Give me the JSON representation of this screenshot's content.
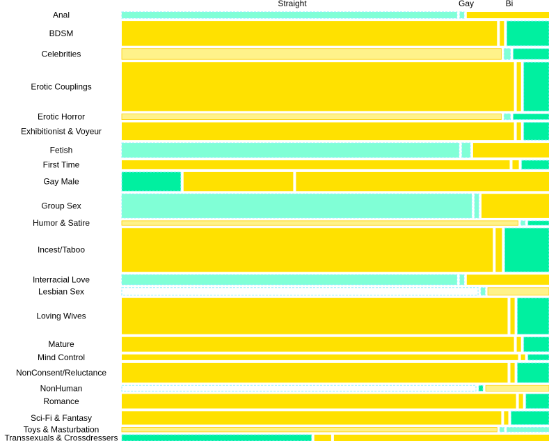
{
  "chart_data": {
    "type": "mosaic",
    "title": "",
    "xlabel": "",
    "ylabel": "",
    "columns": [
      "Straight",
      "Gay",
      "Bi"
    ],
    "colors": {
      "yellow": "#ffe100",
      "pale_yellow": "#fff28a",
      "mint": "#80ffd6",
      "green": "#00f0a0",
      "outline": "#8df0ff"
    },
    "categories": [
      {
        "name": "Anal",
        "weight": 10,
        "straight": 0.795,
        "gay": 0.01,
        "bi": 0.195,
        "style": [
          "mint",
          "mint",
          "yellow"
        ]
      },
      {
        "name": "BDSM",
        "weight": 39,
        "straight": 0.89,
        "gay": 0.01,
        "bi": 0.1,
        "style": [
          "yellow",
          "yellow",
          "green"
        ]
      },
      {
        "name": "Celebrities",
        "weight": 17,
        "straight": 0.9,
        "gay": 0.015,
        "bi": 0.085,
        "style": [
          "pale_yellow",
          "mint",
          "green"
        ]
      },
      {
        "name": "Erotic Couplings",
        "weight": 77,
        "straight": 0.93,
        "gay": 0.01,
        "bi": 0.06,
        "style": [
          "yellow",
          "yellow",
          "green"
        ]
      },
      {
        "name": "Erotic Horror",
        "weight": 9,
        "straight": 0.9,
        "gay": 0.015,
        "bi": 0.085,
        "style": [
          "pale_yellow",
          "mint",
          "green"
        ]
      },
      {
        "name": "Exhibitionist & Voyeur",
        "weight": 28,
        "straight": 0.93,
        "gay": 0.01,
        "bi": 0.06,
        "style": [
          "yellow",
          "yellow",
          "green"
        ]
      },
      {
        "name": "Fetish",
        "weight": 23,
        "straight": 0.8,
        "gay": 0.02,
        "bi": 0.18,
        "style": [
          "mint",
          "mint",
          "yellow"
        ]
      },
      {
        "name": "First Time",
        "weight": 14,
        "straight": 0.92,
        "gay": 0.015,
        "bi": 0.065,
        "style": [
          "yellow",
          "yellow",
          "green"
        ]
      },
      {
        "name": "Gay Male",
        "weight": 30,
        "straight": 0.14,
        "gay": 0.26,
        "bi": 0.6,
        "style": [
          "green",
          "yellow",
          "yellow"
        ]
      },
      {
        "name": "Group Sex",
        "weight": 38,
        "straight": 0.83,
        "gay": 0.01,
        "bi": 0.16,
        "style": [
          "mint",
          "mint",
          "yellow"
        ]
      },
      {
        "name": "Humor & Satire",
        "weight": 7,
        "straight": 0.94,
        "gay": 0.01,
        "bi": 0.05,
        "style": [
          "pale_yellow",
          "mint",
          "green"
        ]
      },
      {
        "name": "Incest/Taboo",
        "weight": 69,
        "straight": 0.88,
        "gay": 0.015,
        "bi": 0.105,
        "style": [
          "yellow",
          "yellow",
          "green"
        ]
      },
      {
        "name": "Interracial Love",
        "weight": 16,
        "straight": 0.795,
        "gay": 0.01,
        "bi": 0.195,
        "style": [
          "mint",
          "mint",
          "yellow"
        ]
      },
      {
        "name": "Lesbian Sex",
        "weight": 12,
        "straight": 0.845,
        "gay": 0.01,
        "bi": 0.145,
        "style": [
          "white",
          "mint",
          "pale_yellow"
        ]
      },
      {
        "name": "Loving Wives",
        "weight": 57,
        "straight": 0.915,
        "gay": 0.01,
        "bi": 0.075,
        "style": [
          "yellow",
          "yellow",
          "green"
        ]
      },
      {
        "name": "Mature",
        "weight": 23,
        "straight": 0.93,
        "gay": 0.01,
        "bi": 0.06,
        "style": [
          "yellow",
          "yellow",
          "green"
        ]
      },
      {
        "name": "Mind Control",
        "weight": 9,
        "straight": 0.94,
        "gay": 0.01,
        "bi": 0.05,
        "style": [
          "yellow",
          "yellow",
          "green"
        ]
      },
      {
        "name": "NonConsent/Reluctance",
        "weight": 31,
        "straight": 0.915,
        "gay": 0.01,
        "bi": 0.075,
        "style": [
          "yellow",
          "yellow",
          "green"
        ]
      },
      {
        "name": "NonHuman",
        "weight": 9,
        "straight": 0.84,
        "gay": 0.01,
        "bi": 0.15,
        "style": [
          "white",
          "green",
          "pale_yellow"
        ]
      },
      {
        "name": "Romance",
        "weight": 23,
        "straight": 0.935,
        "gay": 0.01,
        "bi": 0.055,
        "style": [
          "yellow",
          "yellow",
          "green"
        ]
      },
      {
        "name": "Sci-Fi & Fantasy",
        "weight": 21,
        "straight": 0.9,
        "gay": 0.01,
        "bi": 0.09,
        "style": [
          "yellow",
          "yellow",
          "green"
        ]
      },
      {
        "name": "Toys & Masturbation",
        "weight": 7,
        "straight": 0.89,
        "gay": 0.01,
        "bi": 0.1,
        "style": [
          "pale_yellow",
          "mint",
          "mint"
        ]
      },
      {
        "name": "Transsexuals & Crossdressers",
        "weight": 10,
        "straight": 0.45,
        "gay": 0.04,
        "bi": 0.51,
        "style": [
          "green",
          "yellow",
          "yellow"
        ]
      }
    ]
  }
}
